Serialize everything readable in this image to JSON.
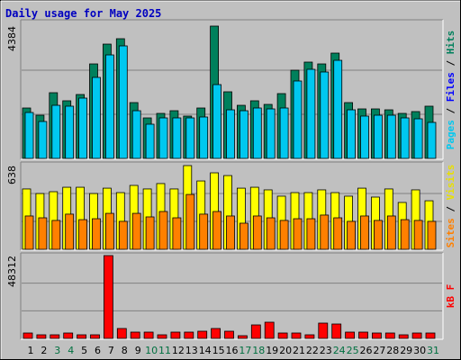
{
  "title": "Daily usage for May 2025",
  "categories": [
    "1",
    "2",
    "3",
    "4",
    "5",
    "6",
    "7",
    "8",
    "9",
    "10",
    "11",
    "12",
    "13",
    "14",
    "15",
    "16",
    "17",
    "18",
    "19",
    "20",
    "21",
    "22",
    "23",
    "24",
    "25",
    "26",
    "27",
    "28",
    "29",
    "30",
    "31"
  ],
  "category_colors": [
    "#000000",
    "#000000",
    "#007040",
    "#007040",
    "#000000",
    "#000000",
    "#000000",
    "#000000",
    "#000000",
    "#007040",
    "#007040",
    "#000000",
    "#000000",
    "#000000",
    "#000000",
    "#000000",
    "#007040",
    "#007040",
    "#000000",
    "#000000",
    "#000000",
    "#000000",
    "#000000",
    "#007040",
    "#007040",
    "#000000",
    "#000000",
    "#000000",
    "#000000",
    "#000000",
    "#007040"
  ],
  "legend_separator": " / ",
  "chart_data": [
    {
      "type": "bar",
      "ylim": [
        0,
        4384
      ],
      "yticks": [
        4384
      ],
      "grid": true,
      "series": [
        {
          "name": "Hits",
          "color": "#00805c",
          "values": [
            1670,
            1431,
            2177,
            1909,
            2117,
            3131,
            3787,
            3966,
            1849,
            1342,
            1491,
            1580,
            1402,
            1670,
            4384,
            2207,
            1759,
            1909,
            1789,
            2147,
            2922,
            3191,
            3131,
            3489,
            1849,
            1640,
            1640,
            1610,
            1491,
            1551,
            1730
          ]
        },
        {
          "name": "Files",
          "color": "#0000ff",
          "values": [
            480,
            450,
            520,
            500,
            530,
            560,
            600,
            620,
            490,
            430,
            450,
            460,
            440,
            470,
            640,
            510,
            470,
            480,
            470,
            500,
            560,
            580,
            570,
            600,
            490,
            460,
            460,
            450,
            440,
            450,
            460
          ]
        },
        {
          "name": "Pages",
          "color": "#00c8f0",
          "values": [
            1521,
            1223,
            1759,
            1730,
            1998,
            2684,
            3429,
            3728,
            1580,
            1133,
            1342,
            1342,
            1342,
            1372,
            2445,
            1610,
            1580,
            1670,
            1640,
            1670,
            2565,
            2952,
            2863,
            3250,
            1610,
            1402,
            1431,
            1431,
            1342,
            1312,
            1193
          ]
        }
      ],
      "legend_order": [
        "Pages",
        "Files",
        "Hits"
      ]
    },
    {
      "type": "bar",
      "ylim": [
        0,
        638
      ],
      "yticks": [
        638
      ],
      "grid": true,
      "series": [
        {
          "name": "Visits",
          "color": "#ffff00",
          "values": [
            460,
            425,
            439,
            473,
            473,
            425,
            466,
            432,
            487,
            460,
            501,
            460,
            638,
            521,
            583,
            562,
            466,
            473,
            453,
            405,
            432,
            432,
            453,
            432,
            405,
            466,
            398,
            460,
            357,
            453,
            370
          ]
        },
        {
          "name": "Sites",
          "color": "#ff8000",
          "values": [
            254,
            240,
            220,
            268,
            226,
            233,
            274,
            213,
            274,
            247,
            288,
            240,
            418,
            268,
            288,
            254,
            199,
            254,
            240,
            220,
            233,
            233,
            261,
            240,
            213,
            254,
            220,
            254,
            226,
            220,
            213
          ]
        }
      ],
      "legend_order": [
        "Sites",
        "Visits"
      ]
    },
    {
      "type": "bar",
      "ylim": [
        0,
        48312
      ],
      "yticks": [
        48312
      ],
      "grid": true,
      "series": [
        {
          "name": "kB F",
          "color": "#ff0000",
          "values": [
            3150,
            2100,
            2100,
            3150,
            2100,
            2100,
            48312,
            5776,
            3675,
            3675,
            2100,
            3675,
            3675,
            4200,
            5776,
            4200,
            1575,
            7876,
            9451,
            3150,
            3150,
            2100,
            8926,
            8401,
            3675,
            3675,
            3150,
            3150,
            2100,
            3150,
            3150
          ]
        }
      ],
      "legend_order": [
        "kB F"
      ]
    }
  ]
}
